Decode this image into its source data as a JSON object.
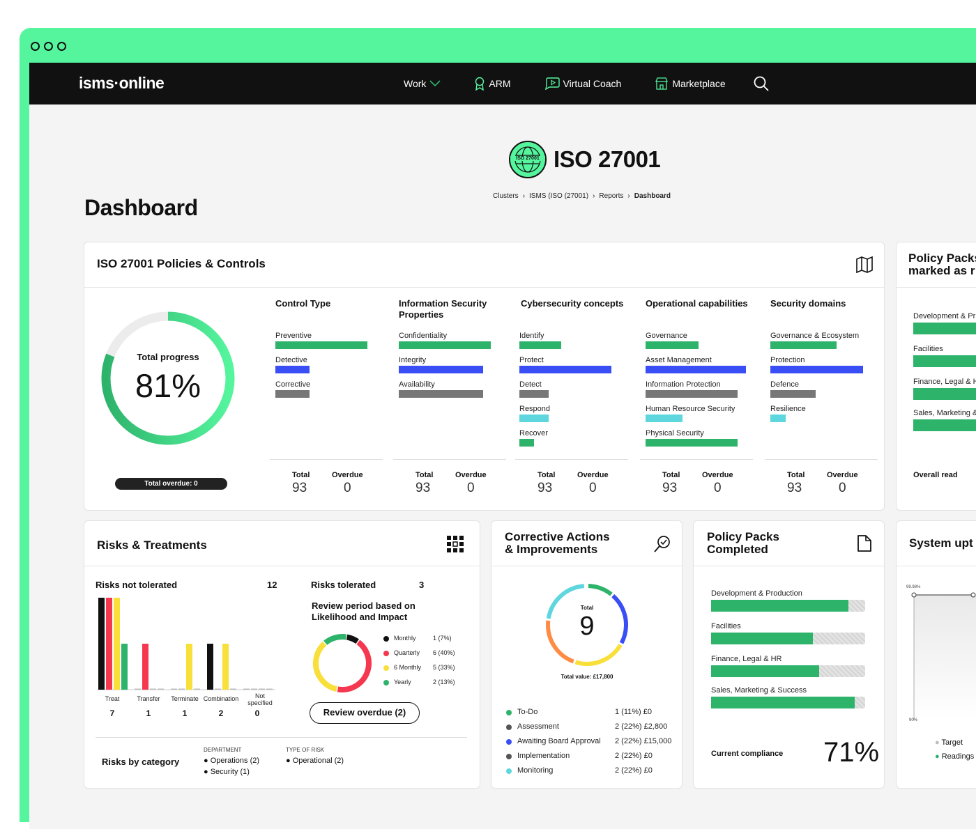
{
  "nav": {
    "logo": "isms·online",
    "items": [
      {
        "label": "Work",
        "icon": "chevron-down-icon"
      },
      {
        "label": "ARM",
        "icon": "award-icon"
      },
      {
        "label": "Virtual Coach",
        "icon": "play-chat-icon"
      },
      {
        "label": "Marketplace",
        "icon": "store-icon"
      }
    ]
  },
  "header": {
    "badge": "ISO 27001",
    "title": "ISO 27001",
    "breadcrumb": [
      "Clusters",
      "ISMS (ISO (27001)",
      "Reports",
      "Dashboard"
    ],
    "page_title": "Dashboard"
  },
  "policies": {
    "title": "ISO 27001 Policies & Controls",
    "progress_label": "Total progress",
    "progress_value": "81%",
    "progress_fraction": 0.81,
    "overdue_label": "Total overdue: 0",
    "columns": [
      {
        "title": "Control Type",
        "total_label": "Total",
        "total": "93",
        "overdue_label": "Overdue",
        "overdue": "0",
        "bars": [
          {
            "label": "Preventive",
            "color": "g",
            "w": 132
          },
          {
            "label": "Detective",
            "color": "b",
            "w": 49
          },
          {
            "label": "Corrective",
            "color": "gr",
            "w": 49
          }
        ]
      },
      {
        "title": "Information Security Properties",
        "total_label": "Total",
        "total": "93",
        "overdue_label": "Overdue",
        "overdue": "0",
        "bars": [
          {
            "label": "Confidentiality",
            "color": "g",
            "w": 132
          },
          {
            "label": "Integrity",
            "color": "b",
            "w": 121
          },
          {
            "label": "Availability",
            "color": "gr",
            "w": 121
          }
        ]
      },
      {
        "title": "Cybersecurity concepts",
        "total_label": "Total",
        "total": "93",
        "overdue_label": "Overdue",
        "overdue": "0",
        "bars": [
          {
            "label": "Identify",
            "color": "g",
            "w": 60
          },
          {
            "label": "Protect",
            "color": "b",
            "w": 132
          },
          {
            "label": "Detect",
            "color": "gr",
            "w": 42
          },
          {
            "label": "Respond",
            "color": "c",
            "w": 42
          },
          {
            "label": "Recover",
            "color": "g",
            "w": 21
          }
        ]
      },
      {
        "title": "Operational capabilities",
        "total_label": "Total",
        "total": "93",
        "overdue_label": "Overdue",
        "overdue": "0",
        "bars": [
          {
            "label": "Governance",
            "color": "g",
            "w": 76
          },
          {
            "label": "Asset Management",
            "color": "b",
            "w": 144
          },
          {
            "label": "Information Protection",
            "color": "gr",
            "w": 132
          },
          {
            "label": "Human Resource Security",
            "color": "c",
            "w": 53
          },
          {
            "label": "Physical Security",
            "color": "g",
            "w": 132
          }
        ]
      },
      {
        "title": "Security domains",
        "total_label": "Total",
        "total": "93",
        "overdue_label": "Overdue",
        "overdue": "0",
        "bars": [
          {
            "label": "Governance & Ecosystem",
            "color": "g",
            "w": 95
          },
          {
            "label": "Protection",
            "color": "b",
            "w": 133
          },
          {
            "label": "Defence",
            "color": "gr",
            "w": 65
          },
          {
            "label": "Resilience",
            "color": "c",
            "w": 22
          }
        ]
      }
    ]
  },
  "policy_read": {
    "title": "Policy Packs marked as r",
    "title_line1": "Policy Packs",
    "title_line2": "marked as r",
    "items": [
      "Development & Pr",
      "Facilities",
      "Finance, Legal & H",
      "Sales, Marketing &"
    ],
    "footer": "Overall read"
  },
  "risks": {
    "title": "Risks & Treatments",
    "not_tolerated_label": "Risks not tolerated",
    "not_tolerated": "12",
    "tolerated_label": "Risks tolerated",
    "tolerated": "3",
    "chart_data": {
      "type": "bar",
      "categories": [
        "Treat",
        "Transfer",
        "Terminate",
        "Combination",
        "Not specified"
      ],
      "totals": [
        "7",
        "1",
        "1",
        "2",
        "0"
      ],
      "series_colors": [
        "#111111",
        "#f5384f",
        "#f9df3a",
        "#2eb36b"
      ],
      "values": [
        [
          3,
          3,
          3,
          1.5
        ],
        [
          0,
          1.5,
          0,
          0
        ],
        [
          0,
          0,
          1.5,
          0
        ],
        [
          1.5,
          0,
          1.5,
          0
        ],
        [
          0,
          0,
          0,
          0
        ]
      ],
      "ylim": [
        0,
        3
      ]
    },
    "review_title": "Review period based on Likelihood and Impact",
    "review_items": [
      {
        "label": "Monthly",
        "value": "1 (7%)",
        "color": "#111111",
        "frac": 0.07
      },
      {
        "label": "Quarterly",
        "value": "6 (40%)",
        "color": "#f5384f",
        "frac": 0.4
      },
      {
        "label": "6 Monthly",
        "value": "5 (33%)",
        "color": "#f9df3a",
        "frac": 0.33
      },
      {
        "label": "Yearly",
        "value": "2 (13%)",
        "color": "#2eb36b",
        "frac": 0.13
      }
    ],
    "review_button": "Review overdue (2)",
    "category_label": "Risks by category",
    "department_label": "DEPARTMENT",
    "departments": [
      "Operations (2)",
      "Security (1)"
    ],
    "type_label": "TYPE OF RISK",
    "types": [
      "Operational (2)"
    ]
  },
  "corrective": {
    "title_line1": "Corrective Actions",
    "title_line2": "& Improvements",
    "total_label": "Total",
    "total": "9",
    "value_label": "Total value: £17,800",
    "items": [
      {
        "label": "To-Do",
        "value": "1 (11%) £0",
        "color": "#2eb36b",
        "frac": 0.11
      },
      {
        "label": "Assessment",
        "value": "2 (22%) £2,800",
        "color": "#3a4ef5",
        "frac": 0.22
      },
      {
        "label": "Awaiting Board Approval",
        "value": "2 (22%) £15,000",
        "color": "#f9df3a",
        "frac": 0.22
      },
      {
        "label": "Implementation",
        "value": "2 (22%) £0",
        "color": "#ff8c45",
        "frac": 0.22
      },
      {
        "label": "Monitoring",
        "value": "2 (22%) £0",
        "color": "#5ed6de",
        "frac": 0.22
      }
    ],
    "legend_colors": [
      "#2eb36b",
      "#555555",
      "#3a4ef5",
      "#555555",
      "#5ed6de"
    ]
  },
  "completed": {
    "title_line1": "Policy Packs",
    "title_line2": "Completed",
    "items": [
      {
        "label": "Development & Production",
        "frac": 0.89
      },
      {
        "label": "Facilities",
        "frac": 0.66
      },
      {
        "label": "Finance, Legal & HR",
        "frac": 0.7
      },
      {
        "label": "Sales, Marketing & Success",
        "frac": 0.93
      }
    ],
    "compliance_label": "Current compliance",
    "compliance_value": "71%"
  },
  "uptime": {
    "title": "System upt",
    "y_top": "99.98%",
    "y_bottom": "90%",
    "legend": [
      {
        "label": "Target",
        "color": "#bbbbbb"
      },
      {
        "label": "Readings",
        "color": "#2eb36b"
      }
    ]
  }
}
